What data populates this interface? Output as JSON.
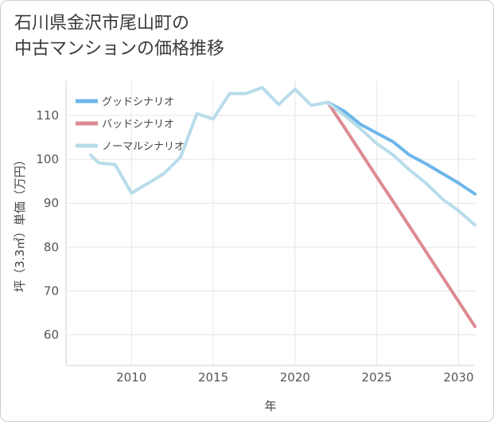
{
  "title": {
    "line1": "石川県金沢市尾山町の",
    "line2": "中古マンションの価格推移"
  },
  "chart_data": {
    "type": "line",
    "xlabel": "年",
    "ylabel": "坪（3.3㎡）単価（万円）",
    "xlim": [
      2006,
      2031
    ],
    "ylim": [
      53,
      118
    ],
    "xticks": [
      2010,
      2015,
      2020,
      2025,
      2030
    ],
    "yticks": [
      60,
      70,
      80,
      90,
      100,
      110
    ],
    "legend_position": "top-left",
    "series": [
      {
        "name": "グッドシナリオ",
        "color": "#6cb6ea",
        "x": [
          2022,
          2023,
          2024,
          2025,
          2026,
          2027,
          2028,
          2029,
          2030,
          2031
        ],
        "y": [
          113,
          111,
          108,
          106,
          104,
          101,
          99,
          96.8,
          94.6,
          92.1
        ]
      },
      {
        "name": "バッドシナリオ",
        "color": "#dd8a92",
        "x": [
          2022,
          2023,
          2024,
          2025,
          2026,
          2027,
          2028,
          2029,
          2030,
          2031
        ],
        "y": [
          113,
          107.4,
          101.7,
          96,
          90.4,
          84.7,
          79,
          73.3,
          67.6,
          61.9
        ]
      },
      {
        "name": "ノーマルシナリオ",
        "color": "#b8dcea",
        "x": [
          2007.5,
          2008,
          2009,
          2010,
          2011,
          2012,
          2013,
          2014,
          2015,
          2016,
          2017,
          2018,
          2019,
          2020,
          2021,
          2022,
          2023,
          2024,
          2025,
          2026,
          2027,
          2028,
          2029,
          2030,
          2031
        ],
        "y": [
          101,
          99.2,
          98.8,
          92.3,
          94.5,
          96.8,
          100.5,
          110.4,
          109.2,
          115,
          115,
          116.4,
          112.5,
          116,
          112.3,
          113,
          110.1,
          107,
          103.6,
          101,
          97.6,
          94.6,
          91,
          88.3,
          85
        ]
      }
    ]
  }
}
